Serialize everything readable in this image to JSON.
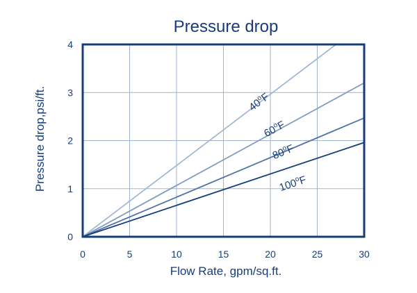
{
  "chart_data": {
    "type": "line",
    "title": "Pressure drop",
    "xlabel": "Flow Rate, gpm/sq.ft.",
    "ylabel": "Pressure drop,psi/ft.",
    "xlim": [
      0,
      30
    ],
    "ylim": [
      0,
      4
    ],
    "xticks": [
      0,
      5,
      10,
      15,
      20,
      25,
      30
    ],
    "yticks": [
      0,
      1,
      2,
      3,
      4
    ],
    "grid": true,
    "series": [
      {
        "name": "40°F",
        "label_base": "40",
        "label_sup": "o",
        "label_unit": "F",
        "x": [
          0,
          27
        ],
        "y": [
          0,
          4.0
        ],
        "color": "#a3b8d1"
      },
      {
        "name": "60°F",
        "label_base": "60",
        "label_sup": "o",
        "label_unit": "F",
        "x": [
          0,
          30
        ],
        "y": [
          0,
          3.2
        ],
        "color": "#7f9cc0"
      },
      {
        "name": "80°F",
        "label_base": "80",
        "label_sup": "o",
        "label_unit": "F",
        "x": [
          0,
          30
        ],
        "y": [
          0,
          2.47
        ],
        "color": "#4f72a4"
      },
      {
        "name": "100°F",
        "label_base": "100",
        "label_sup": "o",
        "label_unit": "F",
        "x": [
          0,
          30
        ],
        "y": [
          0,
          1.96
        ],
        "color": "#163d7a"
      }
    ],
    "colors": {
      "frame": "#163d7a",
      "grid": "#9fb3cc",
      "text": "#163d7a"
    }
  }
}
